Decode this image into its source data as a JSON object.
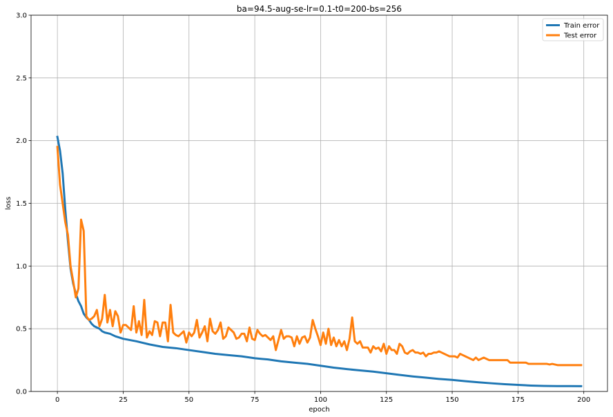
{
  "chart_data": {
    "type": "line",
    "title": "ba=94.5-aug-se-lr=0.1-t0=200-bs=256",
    "xlabel": "epoch",
    "ylabel": "loss",
    "xlim": [
      -10,
      209
    ],
    "ylim": [
      0,
      3.0
    ],
    "xticks": [
      0,
      25,
      50,
      75,
      100,
      125,
      150,
      175,
      200
    ],
    "yticks": [
      0.0,
      0.5,
      1.0,
      1.5,
      2.0,
      2.5,
      3.0
    ],
    "grid": true,
    "legend_position": "top-right",
    "series": [
      {
        "name": "Train error",
        "color": "#1f77b4",
        "points": [
          [
            0,
            2.03
          ],
          [
            1,
            1.92
          ],
          [
            2,
            1.74
          ],
          [
            3,
            1.45
          ],
          [
            4,
            1.2
          ],
          [
            5,
            0.98
          ],
          [
            6,
            0.86
          ],
          [
            7,
            0.78
          ],
          [
            8,
            0.72
          ],
          [
            9,
            0.68
          ],
          [
            10,
            0.62
          ],
          [
            11,
            0.59
          ],
          [
            12,
            0.57
          ],
          [
            13,
            0.54
          ],
          [
            14,
            0.52
          ],
          [
            15,
            0.51
          ],
          [
            16,
            0.5
          ],
          [
            17,
            0.48
          ],
          [
            18,
            0.47
          ],
          [
            20,
            0.46
          ],
          [
            22,
            0.44
          ],
          [
            25,
            0.42
          ],
          [
            30,
            0.4
          ],
          [
            35,
            0.375
          ],
          [
            40,
            0.355
          ],
          [
            45,
            0.345
          ],
          [
            50,
            0.33
          ],
          [
            55,
            0.315
          ],
          [
            60,
            0.3
          ],
          [
            65,
            0.29
          ],
          [
            70,
            0.28
          ],
          [
            75,
            0.265
          ],
          [
            80,
            0.255
          ],
          [
            85,
            0.24
          ],
          [
            90,
            0.23
          ],
          [
            95,
            0.22
          ],
          [
            100,
            0.205
          ],
          [
            105,
            0.19
          ],
          [
            110,
            0.178
          ],
          [
            115,
            0.168
          ],
          [
            120,
            0.158
          ],
          [
            125,
            0.145
          ],
          [
            130,
            0.132
          ],
          [
            135,
            0.12
          ],
          [
            140,
            0.11
          ],
          [
            145,
            0.1
          ],
          [
            150,
            0.092
          ],
          [
            155,
            0.082
          ],
          [
            160,
            0.073
          ],
          [
            165,
            0.065
          ],
          [
            170,
            0.058
          ],
          [
            175,
            0.052
          ],
          [
            180,
            0.047
          ],
          [
            185,
            0.044
          ],
          [
            190,
            0.043
          ],
          [
            195,
            0.043
          ],
          [
            199,
            0.042
          ]
        ]
      },
      {
        "name": "Test error",
        "color": "#ff7f0e",
        "points": [
          [
            0,
            1.95
          ],
          [
            1,
            1.65
          ],
          [
            2,
            1.5
          ],
          [
            3,
            1.35
          ],
          [
            4,
            1.25
          ],
          [
            5,
            1.0
          ],
          [
            6,
            0.88
          ],
          [
            7,
            0.75
          ],
          [
            8,
            0.82
          ],
          [
            9,
            1.37
          ],
          [
            10,
            1.28
          ],
          [
            11,
            0.6
          ],
          [
            12,
            0.57
          ],
          [
            13,
            0.58
          ],
          [
            14,
            0.6
          ],
          [
            15,
            0.65
          ],
          [
            16,
            0.52
          ],
          [
            17,
            0.58
          ],
          [
            18,
            0.77
          ],
          [
            19,
            0.55
          ],
          [
            20,
            0.65
          ],
          [
            21,
            0.52
          ],
          [
            22,
            0.64
          ],
          [
            23,
            0.6
          ],
          [
            24,
            0.47
          ],
          [
            25,
            0.53
          ],
          [
            26,
            0.53
          ],
          [
            27,
            0.51
          ],
          [
            28,
            0.49
          ],
          [
            29,
            0.68
          ],
          [
            30,
            0.47
          ],
          [
            31,
            0.56
          ],
          [
            32,
            0.45
          ],
          [
            33,
            0.73
          ],
          [
            34,
            0.43
          ],
          [
            35,
            0.48
          ],
          [
            36,
            0.45
          ],
          [
            37,
            0.56
          ],
          [
            38,
            0.55
          ],
          [
            39,
            0.44
          ],
          [
            40,
            0.55
          ],
          [
            41,
            0.55
          ],
          [
            42,
            0.4
          ],
          [
            43,
            0.69
          ],
          [
            44,
            0.47
          ],
          [
            45,
            0.45
          ],
          [
            46,
            0.44
          ],
          [
            47,
            0.46
          ],
          [
            48,
            0.48
          ],
          [
            49,
            0.39
          ],
          [
            50,
            0.47
          ],
          [
            51,
            0.44
          ],
          [
            52,
            0.47
          ],
          [
            53,
            0.57
          ],
          [
            54,
            0.43
          ],
          [
            55,
            0.47
          ],
          [
            56,
            0.52
          ],
          [
            57,
            0.4
          ],
          [
            58,
            0.58
          ],
          [
            59,
            0.48
          ],
          [
            60,
            0.46
          ],
          [
            61,
            0.49
          ],
          [
            62,
            0.55
          ],
          [
            63,
            0.42
          ],
          [
            64,
            0.44
          ],
          [
            65,
            0.51
          ],
          [
            66,
            0.49
          ],
          [
            67,
            0.47
          ],
          [
            68,
            0.42
          ],
          [
            69,
            0.43
          ],
          [
            70,
            0.46
          ],
          [
            71,
            0.46
          ],
          [
            72,
            0.4
          ],
          [
            73,
            0.51
          ],
          [
            74,
            0.42
          ],
          [
            75,
            0.41
          ],
          [
            76,
            0.49
          ],
          [
            77,
            0.46
          ],
          [
            78,
            0.44
          ],
          [
            79,
            0.45
          ],
          [
            80,
            0.43
          ],
          [
            81,
            0.41
          ],
          [
            82,
            0.44
          ],
          [
            83,
            0.33
          ],
          [
            84,
            0.41
          ],
          [
            85,
            0.49
          ],
          [
            86,
            0.42
          ],
          [
            87,
            0.44
          ],
          [
            88,
            0.44
          ],
          [
            89,
            0.43
          ],
          [
            90,
            0.36
          ],
          [
            91,
            0.44
          ],
          [
            92,
            0.38
          ],
          [
            93,
            0.43
          ],
          [
            94,
            0.44
          ],
          [
            95,
            0.39
          ],
          [
            96,
            0.43
          ],
          [
            97,
            0.57
          ],
          [
            98,
            0.5
          ],
          [
            99,
            0.44
          ],
          [
            100,
            0.37
          ],
          [
            101,
            0.47
          ],
          [
            102,
            0.38
          ],
          [
            103,
            0.5
          ],
          [
            104,
            0.37
          ],
          [
            105,
            0.43
          ],
          [
            106,
            0.36
          ],
          [
            107,
            0.41
          ],
          [
            108,
            0.36
          ],
          [
            109,
            0.4
          ],
          [
            110,
            0.33
          ],
          [
            111,
            0.42
          ],
          [
            112,
            0.59
          ],
          [
            113,
            0.4
          ],
          [
            114,
            0.38
          ],
          [
            115,
            0.4
          ],
          [
            116,
            0.35
          ],
          [
            117,
            0.35
          ],
          [
            118,
            0.35
          ],
          [
            119,
            0.31
          ],
          [
            120,
            0.36
          ],
          [
            121,
            0.34
          ],
          [
            122,
            0.35
          ],
          [
            123,
            0.32
          ],
          [
            124,
            0.38
          ],
          [
            125,
            0.3
          ],
          [
            126,
            0.36
          ],
          [
            127,
            0.33
          ],
          [
            128,
            0.33
          ],
          [
            129,
            0.3
          ],
          [
            130,
            0.38
          ],
          [
            131,
            0.36
          ],
          [
            132,
            0.31
          ],
          [
            133,
            0.3
          ],
          [
            134,
            0.32
          ],
          [
            135,
            0.33
          ],
          [
            136,
            0.31
          ],
          [
            137,
            0.31
          ],
          [
            138,
            0.3
          ],
          [
            139,
            0.31
          ],
          [
            140,
            0.28
          ],
          [
            141,
            0.3
          ],
          [
            142,
            0.3
          ],
          [
            143,
            0.31
          ],
          [
            144,
            0.31
          ],
          [
            145,
            0.32
          ],
          [
            146,
            0.31
          ],
          [
            147,
            0.3
          ],
          [
            148,
            0.29
          ],
          [
            149,
            0.28
          ],
          [
            150,
            0.28
          ],
          [
            151,
            0.28
          ],
          [
            152,
            0.27
          ],
          [
            153,
            0.3
          ],
          [
            154,
            0.29
          ],
          [
            155,
            0.28
          ],
          [
            156,
            0.27
          ],
          [
            157,
            0.26
          ],
          [
            158,
            0.25
          ],
          [
            159,
            0.27
          ],
          [
            160,
            0.25
          ],
          [
            161,
            0.26
          ],
          [
            162,
            0.27
          ],
          [
            163,
            0.26
          ],
          [
            164,
            0.25
          ],
          [
            165,
            0.25
          ],
          [
            166,
            0.25
          ],
          [
            167,
            0.25
          ],
          [
            168,
            0.25
          ],
          [
            169,
            0.25
          ],
          [
            170,
            0.25
          ],
          [
            171,
            0.25
          ],
          [
            172,
            0.23
          ],
          [
            173,
            0.23
          ],
          [
            174,
            0.23
          ],
          [
            175,
            0.23
          ],
          [
            176,
            0.23
          ],
          [
            177,
            0.23
          ],
          [
            178,
            0.23
          ],
          [
            179,
            0.22
          ],
          [
            180,
            0.22
          ],
          [
            181,
            0.22
          ],
          [
            182,
            0.22
          ],
          [
            183,
            0.22
          ],
          [
            184,
            0.22
          ],
          [
            185,
            0.22
          ],
          [
            186,
            0.22
          ],
          [
            187,
            0.215
          ],
          [
            188,
            0.22
          ],
          [
            189,
            0.215
          ],
          [
            190,
            0.21
          ],
          [
            191,
            0.21
          ],
          [
            192,
            0.21
          ],
          [
            193,
            0.21
          ],
          [
            194,
            0.21
          ],
          [
            195,
            0.21
          ],
          [
            196,
            0.21
          ],
          [
            197,
            0.21
          ],
          [
            198,
            0.21
          ],
          [
            199,
            0.21
          ]
        ]
      }
    ]
  }
}
